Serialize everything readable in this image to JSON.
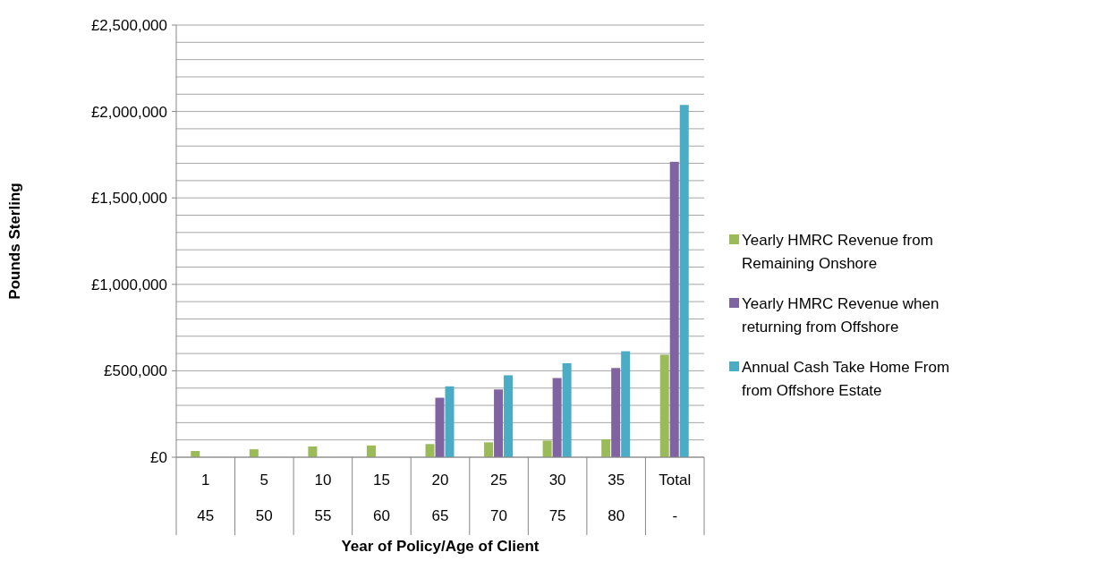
{
  "chart_data": {
    "type": "bar",
    "xlabel": "Year of Policy/Age of Client",
    "ylabel": "Pounds Sterling",
    "categories": [
      "1\n45",
      "5\n50",
      "10\n55",
      "15\n60",
      "20\n65",
      "25\n70",
      "30\n75",
      "35\n80",
      "Total\n-"
    ],
    "series": [
      {
        "name": "Yearly HMRC Revenue from Remaining Onshore",
        "color": "#9bbb59",
        "values": [
          36000,
          46000,
          62000,
          68000,
          76000,
          86000,
          96000,
          104000,
          593000
        ]
      },
      {
        "name": "Yearly HMRC Revenue when returning from Offshore",
        "color": "#8064a2",
        "values": [
          null,
          null,
          null,
          null,
          344000,
          392000,
          458000,
          516000,
          1709000
        ]
      },
      {
        "name": "Annual Cash Take Home From from Offshore Estate",
        "color": "#4bacc6",
        "values": [
          null,
          null,
          null,
          null,
          410000,
          474000,
          544000,
          613000,
          2038000
        ]
      }
    ],
    "ylim": [
      0,
      2500000
    ],
    "yticks": [
      {
        "value": 0,
        "label": "£0"
      },
      {
        "value": 100000,
        "label": null
      },
      {
        "value": 200000,
        "label": null
      },
      {
        "value": 300000,
        "label": null
      },
      {
        "value": 400000,
        "label": null
      },
      {
        "value": 500000,
        "label": "£500,000"
      },
      {
        "value": 600000,
        "label": null
      },
      {
        "value": 700000,
        "label": null
      },
      {
        "value": 800000,
        "label": null
      },
      {
        "value": 900000,
        "label": null
      },
      {
        "value": 1000000,
        "label": "£1,000,000"
      },
      {
        "value": 1100000,
        "label": null
      },
      {
        "value": 1200000,
        "label": null
      },
      {
        "value": 1300000,
        "label": null
      },
      {
        "value": 1400000,
        "label": null
      },
      {
        "value": 1500000,
        "label": "£1,500,000"
      },
      {
        "value": 1600000,
        "label": null
      },
      {
        "value": 1700000,
        "label": null
      },
      {
        "value": 1800000,
        "label": null
      },
      {
        "value": 1900000,
        "label": null
      },
      {
        "value": 2000000,
        "label": "£2,000,000"
      },
      {
        "value": 2100000,
        "label": null
      },
      {
        "value": 2200000,
        "label": null
      },
      {
        "value": 2300000,
        "label": null
      },
      {
        "value": 2400000,
        "label": null
      },
      {
        "value": 2500000,
        "label": "£2,500,000"
      }
    ],
    "grid": "y",
    "legend": "right"
  }
}
